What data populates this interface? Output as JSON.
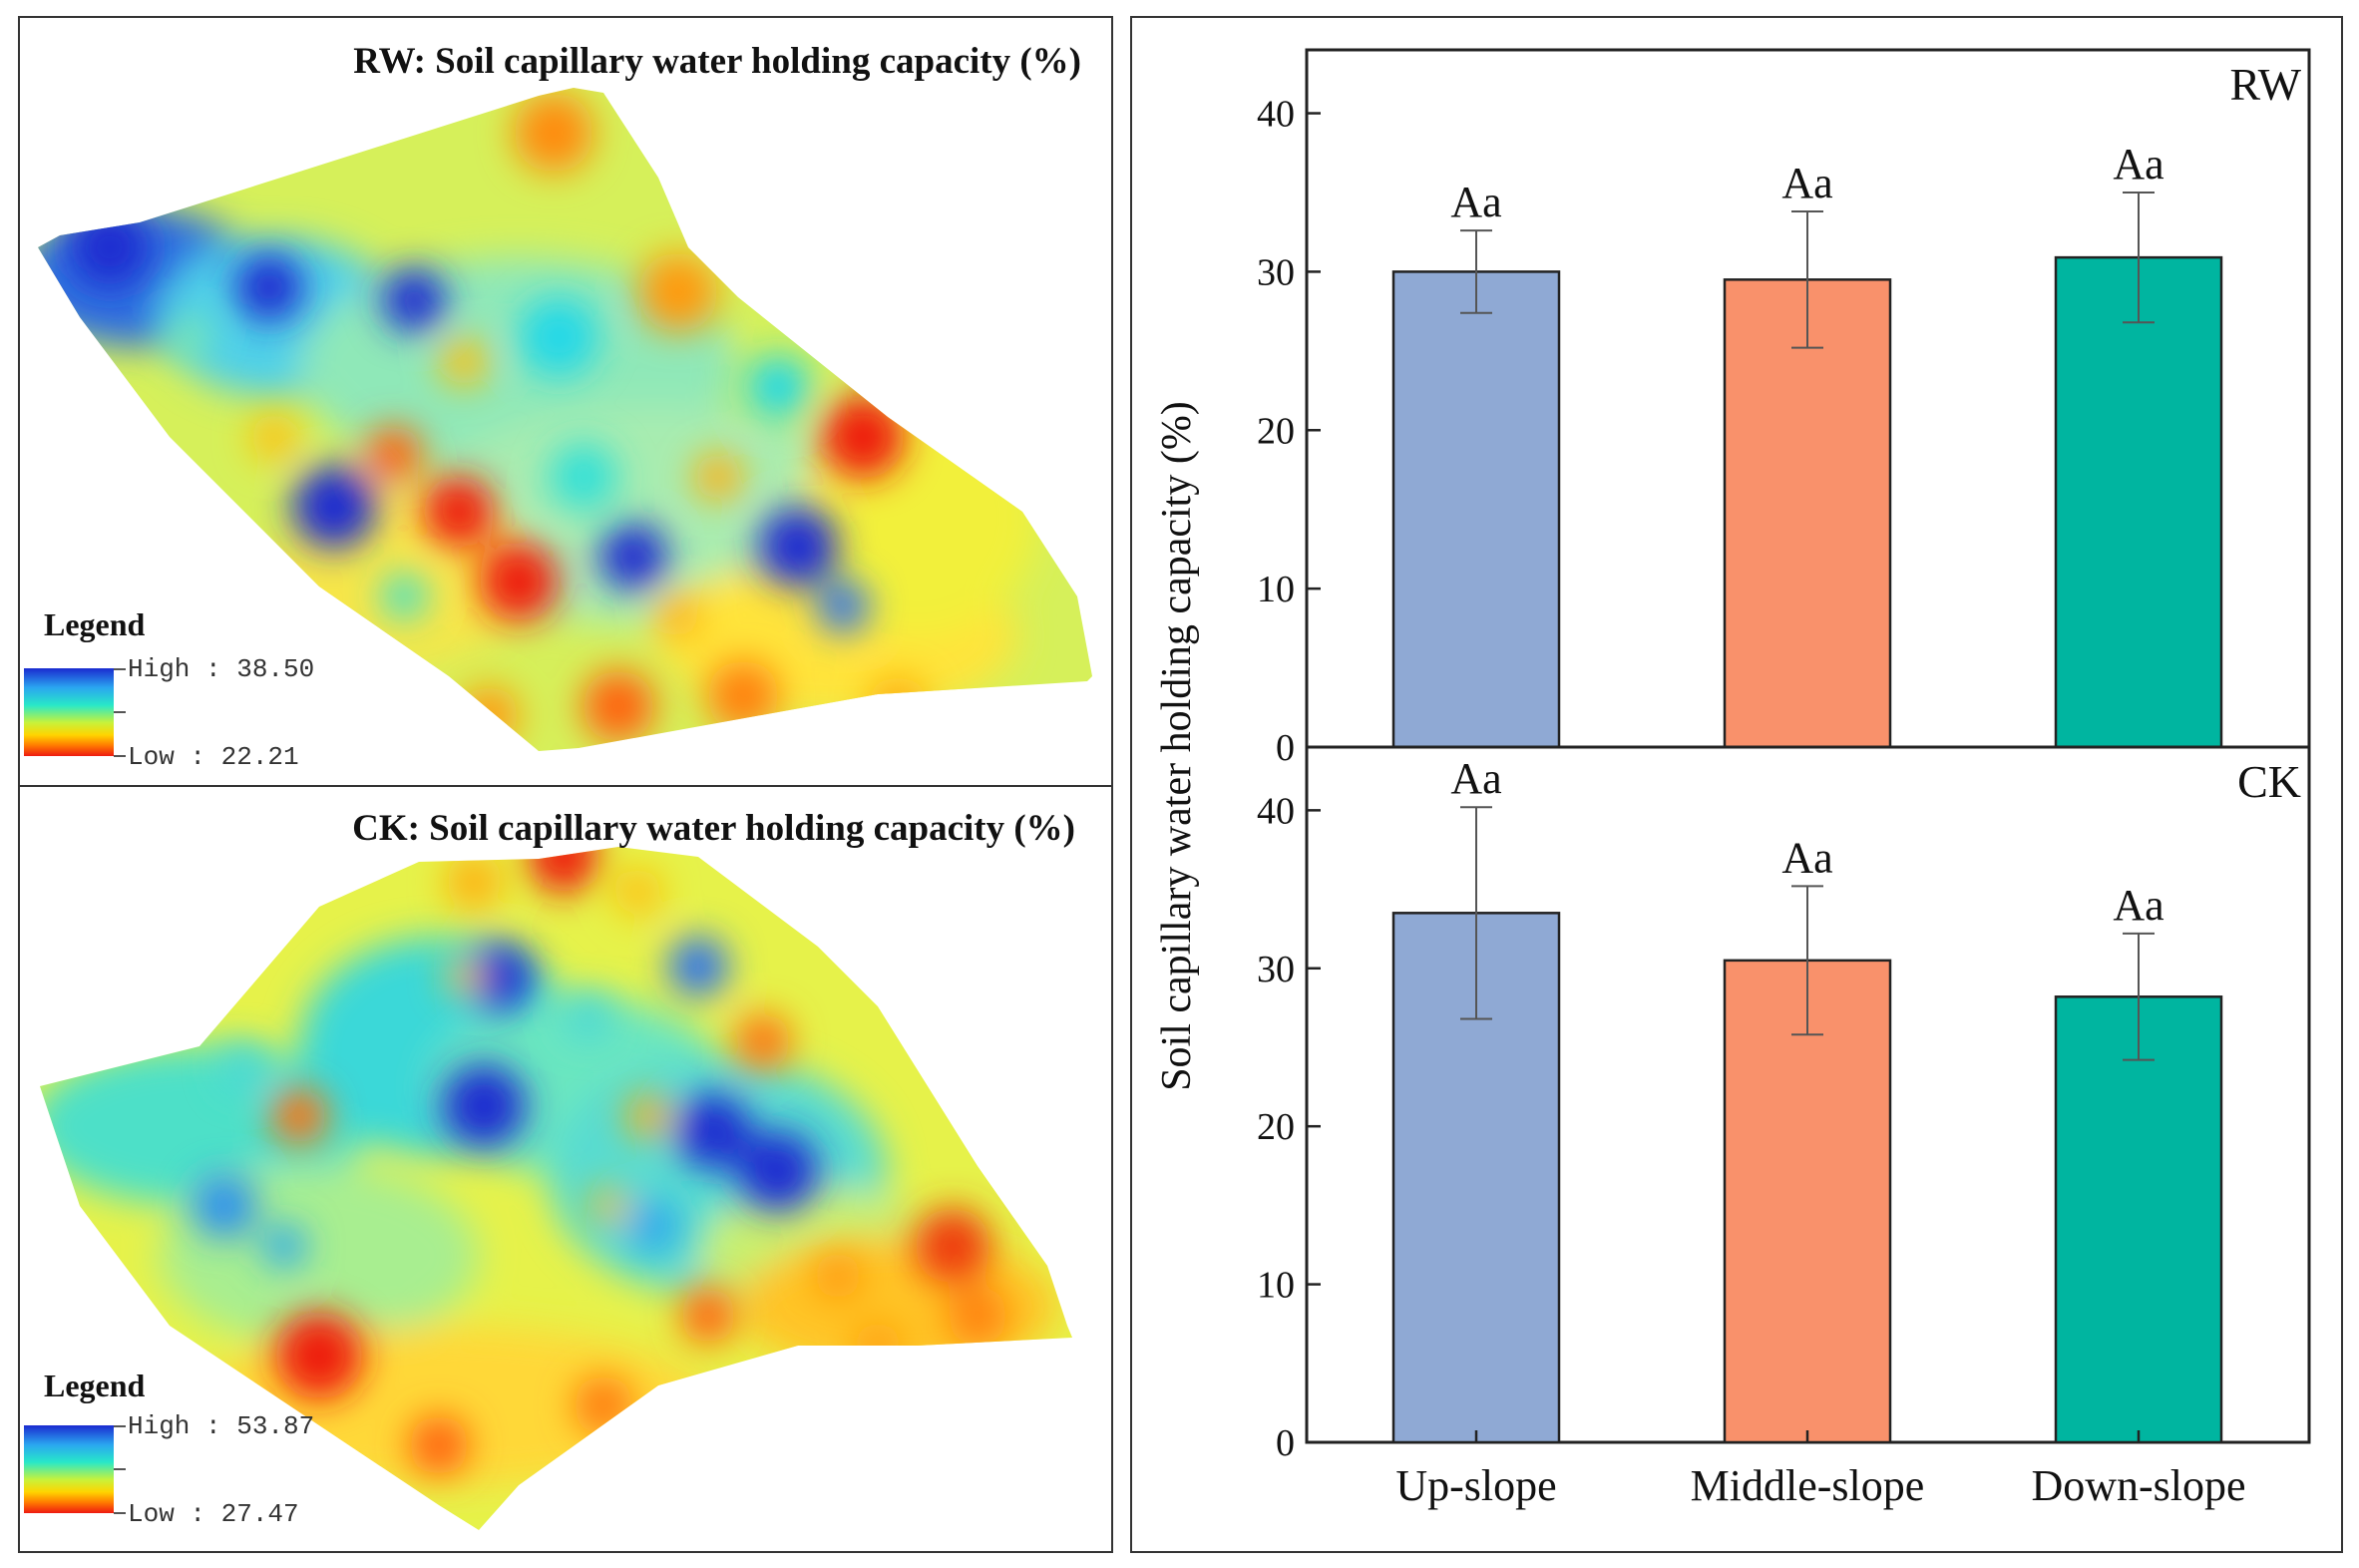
{
  "maps": {
    "rw": {
      "title": "RW: Soil capillary  water holding  capacity (%)",
      "legend_title": "Legend",
      "high_label": "High : 38.50",
      "low_label": "Low : 22.21"
    },
    "ck": {
      "title": "CK: Soil capillary  water holding  capacity (%)",
      "legend_title": "Legend",
      "high_label": "High : 53.87",
      "low_label": "Low : 27.47"
    }
  },
  "colors": {
    "up_slope": "#8fa9d4",
    "middle_slope": "#f9916b",
    "down_slope": "#00b5a0",
    "error_bar": "#555555"
  },
  "chart_data": [
    {
      "type": "bar",
      "panel_label": "RW",
      "categories": [
        "Up-slope",
        "Middle-slope",
        "Down-slope"
      ],
      "values": [
        30.0,
        29.5,
        30.9
      ],
      "errors": [
        2.6,
        4.3,
        4.1
      ],
      "annotations": [
        "Aa",
        "Aa",
        "Aa"
      ],
      "ylabel": "Soil capillary water holding capacity (%)",
      "yticks": [
        0,
        10,
        20,
        30,
        40
      ],
      "ylim": [
        0,
        44
      ]
    },
    {
      "type": "bar",
      "panel_label": "CK",
      "categories": [
        "Up-slope",
        "Middle-slope",
        "Down-slope"
      ],
      "values": [
        33.5,
        30.5,
        28.2
      ],
      "errors": [
        6.7,
        4.7,
        4.0
      ],
      "annotations": [
        "Aa",
        "Aa",
        "Aa"
      ],
      "ylabel": "Soil capillary water holding capacity (%)",
      "yticks": [
        0,
        10,
        20,
        30,
        40
      ],
      "ylim": [
        0,
        44
      ]
    }
  ]
}
